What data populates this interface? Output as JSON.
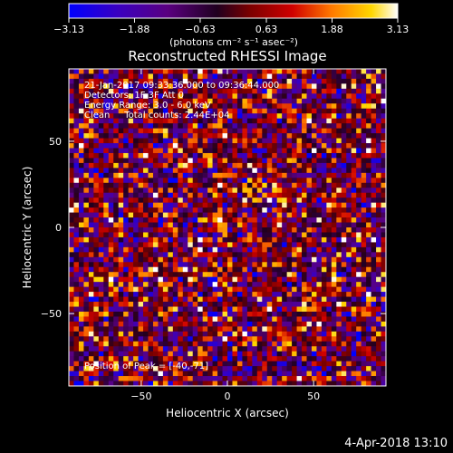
{
  "chart_data": {
    "type": "heatmap",
    "title": "Reconstructed RHESSI Image",
    "xlabel": "Heliocentric X (arcsec)",
    "ylabel": "Heliocentric Y (arcsec)",
    "xlim": [
      -92,
      92
    ],
    "ylim": [
      -92,
      92
    ],
    "x_ticks": [
      -50,
      0,
      50
    ],
    "y_ticks": [
      -50,
      0,
      50
    ],
    "grid_size": 64,
    "colorbar": {
      "min": -3.13,
      "max": 3.13,
      "tick_values": [
        -3.13,
        -1.88,
        -0.63,
        0.63,
        1.88,
        3.13
      ],
      "tick_labels": [
        "-3.13",
        "-1.88",
        "-0.63",
        "0.63",
        "1.88",
        "3.13"
      ],
      "unit_label": "(photons cm⁻² s⁻¹ asec⁻²)",
      "colormap": [
        "#0000ff",
        "#3a00c0",
        "#5a0080",
        "#000000",
        "#c80000",
        "#ff7a00",
        "#ffd700",
        "#ffffff"
      ]
    },
    "annotations": {
      "time_range": "21-Jan-2017 09:33:36.000 to 09:36:44.000",
      "detectors": "Detectors: 1F 3F  Att 0",
      "energy_range": "Energy Range: 3.0 - 6.0 keV",
      "method": "Clean     Total counts: 2.44E+04",
      "peak_position": "Position of Peak = [-40,-71]"
    }
  },
  "footer": {
    "date_time": "4-Apr-2018 13:10"
  }
}
